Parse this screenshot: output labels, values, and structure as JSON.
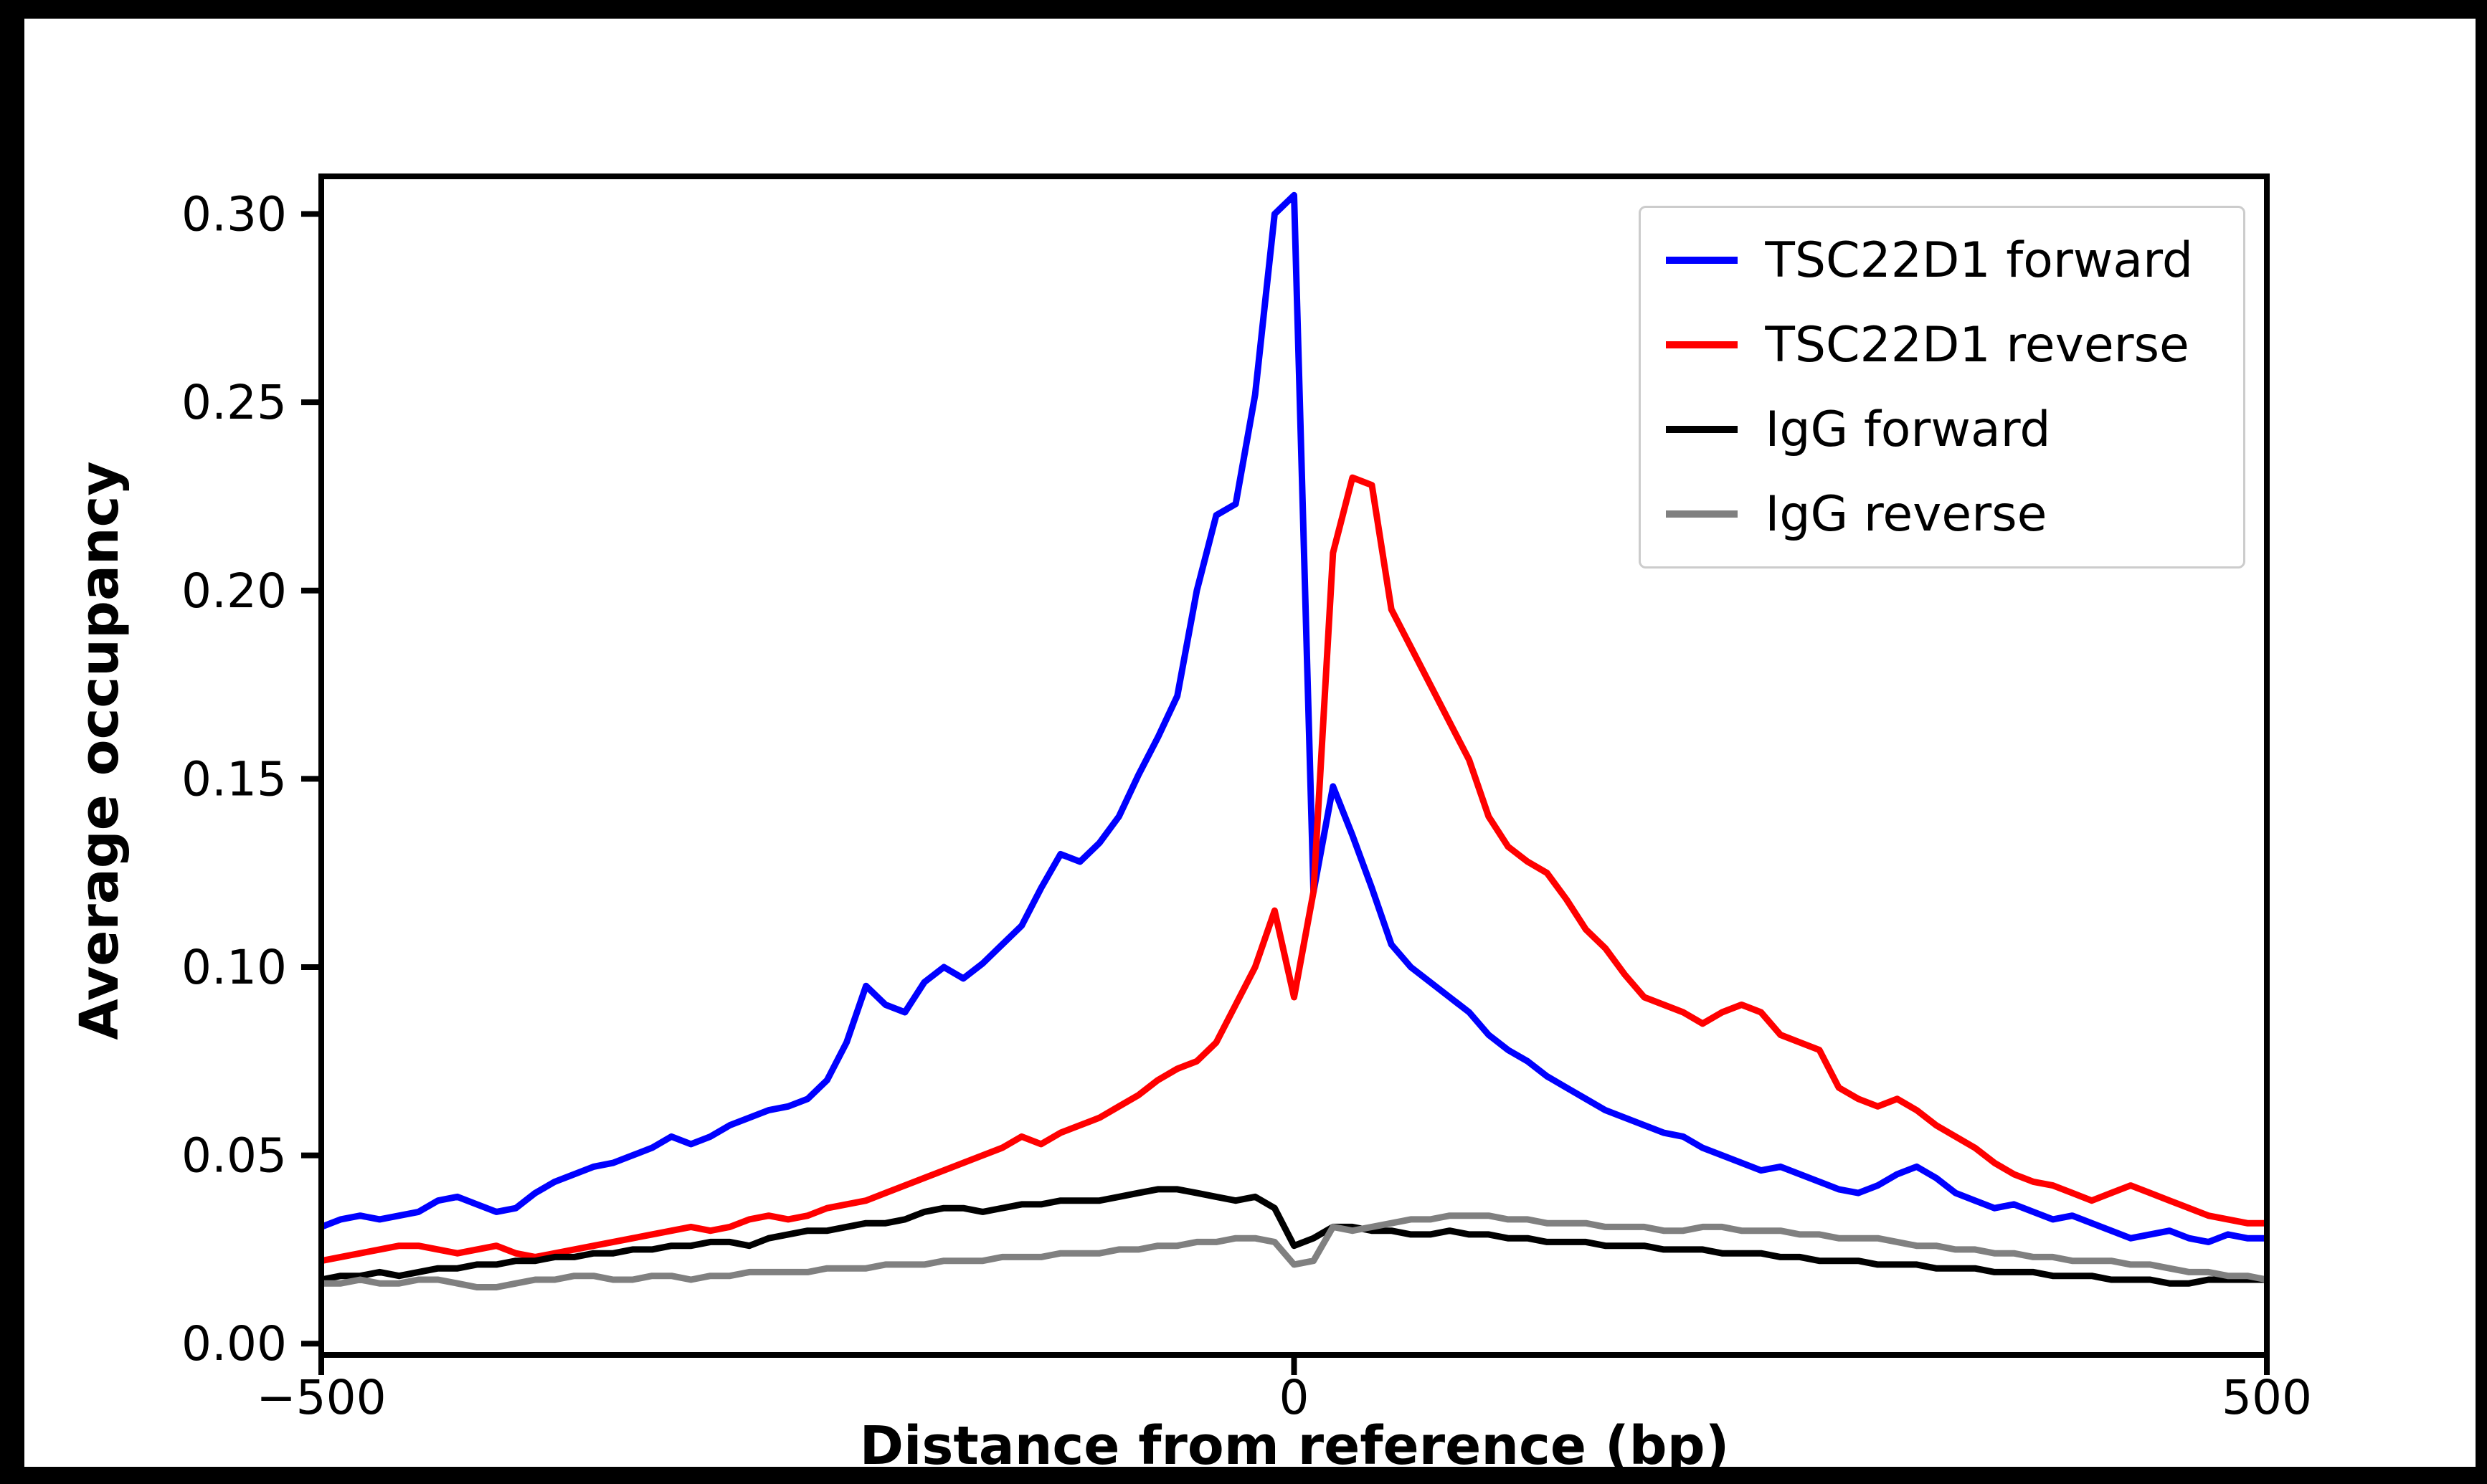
{
  "chart_data": {
    "type": "line",
    "title": "",
    "xlabel": "Distance from reference (bp)",
    "ylabel": "Average occupancy",
    "xlim": [
      -500,
      500
    ],
    "ylim": [
      0,
      0.31
    ],
    "x_ticks": [
      -500,
      0,
      500
    ],
    "y_ticks": [
      0.0,
      0.05,
      0.1,
      0.15,
      0.2,
      0.25,
      0.3
    ],
    "grid": false,
    "legend_position": "upper right",
    "x": [
      -500,
      -490,
      -480,
      -470,
      -460,
      -450,
      -440,
      -430,
      -420,
      -410,
      -400,
      -390,
      -380,
      -370,
      -360,
      -350,
      -340,
      -330,
      -320,
      -310,
      -300,
      -290,
      -280,
      -270,
      -260,
      -250,
      -240,
      -230,
      -220,
      -210,
      -200,
      -190,
      -180,
      -170,
      -160,
      -150,
      -140,
      -130,
      -120,
      -110,
      -100,
      -90,
      -80,
      -70,
      -60,
      -50,
      -40,
      -30,
      -20,
      -10,
      0,
      10,
      20,
      30,
      40,
      50,
      60,
      70,
      80,
      90,
      100,
      110,
      120,
      130,
      140,
      150,
      160,
      170,
      180,
      190,
      200,
      210,
      220,
      230,
      240,
      250,
      260,
      270,
      280,
      290,
      300,
      310,
      320,
      330,
      340,
      350,
      360,
      370,
      380,
      390,
      400,
      410,
      420,
      430,
      440,
      450,
      460,
      470,
      480,
      490,
      500
    ],
    "series": [
      {
        "name": "TSC22D1 forward",
        "color": "#0000ff",
        "values": [
          0.031,
          0.033,
          0.034,
          0.033,
          0.034,
          0.035,
          0.038,
          0.039,
          0.037,
          0.035,
          0.036,
          0.04,
          0.043,
          0.045,
          0.047,
          0.048,
          0.05,
          0.052,
          0.055,
          0.053,
          0.055,
          0.058,
          0.06,
          0.062,
          0.063,
          0.065,
          0.07,
          0.08,
          0.095,
          0.09,
          0.088,
          0.096,
          0.1,
          0.097,
          0.101,
          0.106,
          0.111,
          0.121,
          0.13,
          0.128,
          0.133,
          0.14,
          0.151,
          0.161,
          0.172,
          0.2,
          0.22,
          0.223,
          0.252,
          0.3,
          0.305,
          0.12,
          0.148,
          0.135,
          0.121,
          0.106,
          0.1,
          0.096,
          0.092,
          0.088,
          0.082,
          0.078,
          0.075,
          0.071,
          0.068,
          0.065,
          0.062,
          0.06,
          0.058,
          0.056,
          0.055,
          0.052,
          0.05,
          0.048,
          0.046,
          0.047,
          0.045,
          0.043,
          0.041,
          0.04,
          0.042,
          0.045,
          0.047,
          0.044,
          0.04,
          0.038,
          0.036,
          0.037,
          0.035,
          0.033,
          0.034,
          0.032,
          0.03,
          0.028,
          0.029,
          0.03,
          0.028,
          0.027,
          0.029,
          0.028,
          0.028
        ]
      },
      {
        "name": "TSC22D1 reverse",
        "color": "#ff0000",
        "values": [
          0.022,
          0.023,
          0.024,
          0.025,
          0.026,
          0.026,
          0.025,
          0.024,
          0.025,
          0.026,
          0.024,
          0.023,
          0.024,
          0.025,
          0.026,
          0.027,
          0.028,
          0.029,
          0.03,
          0.031,
          0.03,
          0.031,
          0.033,
          0.034,
          0.033,
          0.034,
          0.036,
          0.037,
          0.038,
          0.04,
          0.042,
          0.044,
          0.046,
          0.048,
          0.05,
          0.052,
          0.055,
          0.053,
          0.056,
          0.058,
          0.06,
          0.063,
          0.066,
          0.07,
          0.073,
          0.075,
          0.08,
          0.09,
          0.1,
          0.115,
          0.092,
          0.12,
          0.21,
          0.23,
          0.228,
          0.195,
          0.185,
          0.175,
          0.165,
          0.155,
          0.14,
          0.132,
          0.128,
          0.125,
          0.118,
          0.11,
          0.105,
          0.098,
          0.092,
          0.09,
          0.088,
          0.085,
          0.088,
          0.09,
          0.088,
          0.082,
          0.08,
          0.078,
          0.068,
          0.065,
          0.063,
          0.065,
          0.062,
          0.058,
          0.055,
          0.052,
          0.048,
          0.045,
          0.043,
          0.042,
          0.04,
          0.038,
          0.04,
          0.042,
          0.04,
          0.038,
          0.036,
          0.034,
          0.033,
          0.032,
          0.032
        ]
      },
      {
        "name": "IgG forward",
        "color": "#000000",
        "values": [
          0.017,
          0.018,
          0.018,
          0.019,
          0.018,
          0.019,
          0.02,
          0.02,
          0.021,
          0.021,
          0.022,
          0.022,
          0.023,
          0.023,
          0.024,
          0.024,
          0.025,
          0.025,
          0.026,
          0.026,
          0.027,
          0.027,
          0.026,
          0.028,
          0.029,
          0.03,
          0.03,
          0.031,
          0.032,
          0.032,
          0.033,
          0.035,
          0.036,
          0.036,
          0.035,
          0.036,
          0.037,
          0.037,
          0.038,
          0.038,
          0.038,
          0.039,
          0.04,
          0.041,
          0.041,
          0.04,
          0.039,
          0.038,
          0.039,
          0.036,
          0.026,
          0.028,
          0.031,
          0.031,
          0.03,
          0.03,
          0.029,
          0.029,
          0.03,
          0.029,
          0.029,
          0.028,
          0.028,
          0.027,
          0.027,
          0.027,
          0.026,
          0.026,
          0.026,
          0.025,
          0.025,
          0.025,
          0.024,
          0.024,
          0.024,
          0.023,
          0.023,
          0.022,
          0.022,
          0.022,
          0.021,
          0.021,
          0.021,
          0.02,
          0.02,
          0.02,
          0.019,
          0.019,
          0.019,
          0.018,
          0.018,
          0.018,
          0.017,
          0.017,
          0.017,
          0.016,
          0.016,
          0.017,
          0.017,
          0.017,
          0.017
        ]
      },
      {
        "name": "IgG reverse",
        "color": "#808080",
        "values": [
          0.016,
          0.016,
          0.017,
          0.016,
          0.016,
          0.017,
          0.017,
          0.016,
          0.015,
          0.015,
          0.016,
          0.017,
          0.017,
          0.018,
          0.018,
          0.017,
          0.017,
          0.018,
          0.018,
          0.017,
          0.018,
          0.018,
          0.019,
          0.019,
          0.019,
          0.019,
          0.02,
          0.02,
          0.02,
          0.021,
          0.021,
          0.021,
          0.022,
          0.022,
          0.022,
          0.023,
          0.023,
          0.023,
          0.024,
          0.024,
          0.024,
          0.025,
          0.025,
          0.026,
          0.026,
          0.027,
          0.027,
          0.028,
          0.028,
          0.027,
          0.021,
          0.022,
          0.031,
          0.03,
          0.031,
          0.032,
          0.033,
          0.033,
          0.034,
          0.034,
          0.034,
          0.033,
          0.033,
          0.032,
          0.032,
          0.032,
          0.031,
          0.031,
          0.031,
          0.03,
          0.03,
          0.031,
          0.031,
          0.03,
          0.03,
          0.03,
          0.029,
          0.029,
          0.028,
          0.028,
          0.028,
          0.027,
          0.026,
          0.026,
          0.025,
          0.025,
          0.024,
          0.024,
          0.023,
          0.023,
          0.022,
          0.022,
          0.022,
          0.021,
          0.021,
          0.02,
          0.019,
          0.019,
          0.018,
          0.018,
          0.017
        ]
      }
    ]
  }
}
